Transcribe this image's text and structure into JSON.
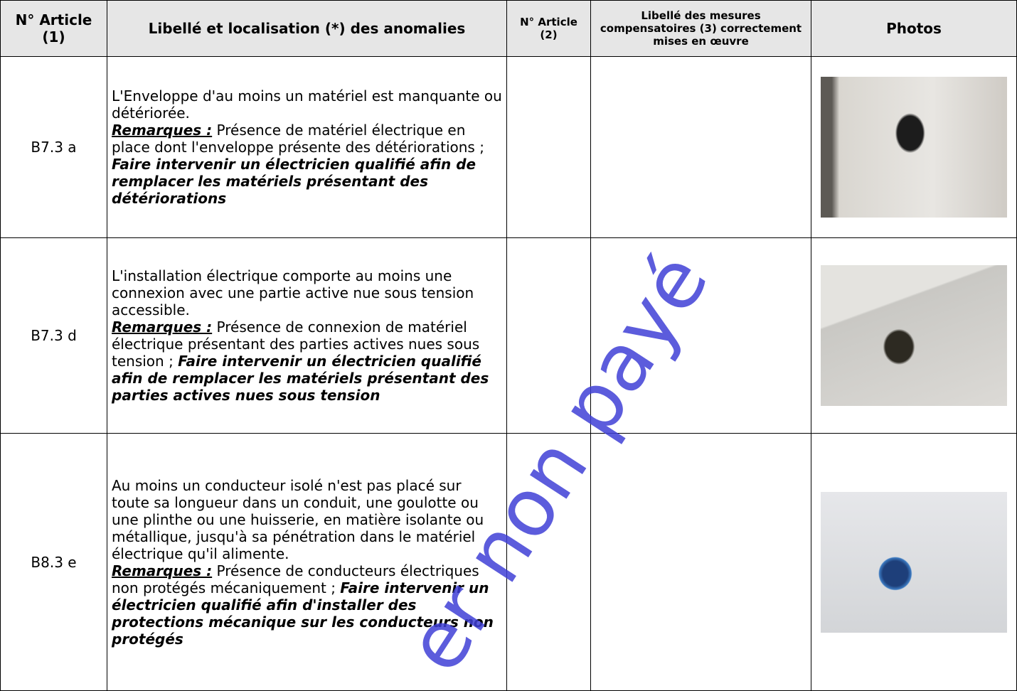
{
  "table": {
    "headers": [
      "N° Article (1)",
      "Libellé et localisation (*) des anomalies",
      "N° Article (2)",
      "Libellé des mesures compensatoires (3) correctement mises en œuvre",
      "Photos"
    ],
    "rows": [
      {
        "article": "B7.3 a",
        "description": "L'Enveloppe d'au moins un matériel est manquante ou détériorée.",
        "remark_label": "Remarques :",
        "remark": "Présence de matériel électrique en place dont l'enveloppe présente des détériorations ;",
        "recommendation": "Faire intervenir un électricien qualifié afin de remplacer les matériels présentant des détériorations"
      },
      {
        "article": "B7.3 d",
        "description": "L'installation électrique comporte au moins une connexion avec une partie active nue sous tension accessible.",
        "remark_label": "Remarques :",
        "remark": "Présence de connexion de matériel électrique présentant des parties actives nues sous tension ;",
        "recommendation": "Faire intervenir un électricien qualifié afin de remplacer les matériels présentant des parties actives nues sous tension"
      },
      {
        "article": "B8.3 e",
        "description": "Au moins un conducteur isolé n'est pas placé sur toute sa longueur dans un conduit, une goulotte ou une plinthe ou une huisserie, en matière isolante ou métallique, jusqu'à sa pénétration dans le matériel électrique qu'il alimente.",
        "remark_label": "Remarques :",
        "remark": "Présence de conducteurs électriques non protégés mécaniquement ;",
        "recommendation": "Faire intervenir un électricien qualifié afin d'installer des protections mécanique sur les conducteurs non protégés"
      }
    ]
  },
  "watermark": "er non payé"
}
